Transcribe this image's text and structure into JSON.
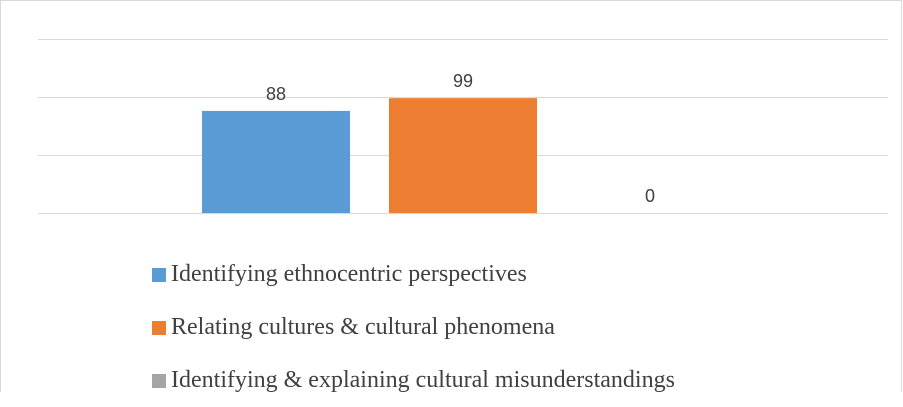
{
  "chart_data": {
    "type": "bar",
    "title": "",
    "xlabel": "",
    "ylabel": "",
    "ylim": [
      0,
      150
    ],
    "grid": true,
    "legend_position": "bottom",
    "series": [
      {
        "name": "Identifying ethnocentric perspectives",
        "value": 88,
        "color": "#5b9bd5",
        "label": "88"
      },
      {
        "name": "Relating cultures & cultural phenomena",
        "value": 99,
        "color": "#ed7d31",
        "label": "99"
      },
      {
        "name": "Identifying & explaining cultural misunderstandings",
        "value": 0,
        "color": "#a5a5a5",
        "label": "0"
      }
    ]
  }
}
